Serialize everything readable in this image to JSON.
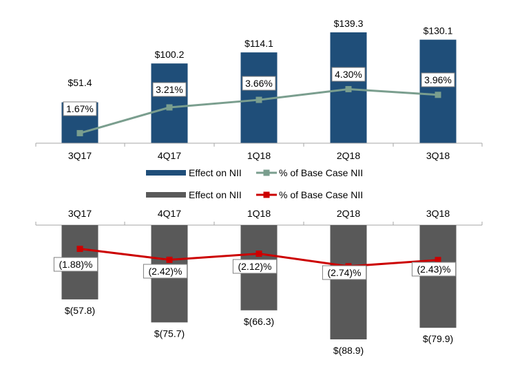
{
  "chart_data": [
    {
      "type": "bar",
      "categories": [
        "3Q17",
        "4Q17",
        "1Q18",
        "2Q18",
        "3Q18"
      ],
      "series": [
        {
          "name": "Effect on NII",
          "values": [
            51.4,
            100.2,
            114.1,
            139.3,
            130.1
          ],
          "labels": [
            "$51.4",
            "$100.2",
            "$114.1",
            "$139.3",
            "$130.1"
          ],
          "color": "#1f4e79",
          "kind": "bar"
        },
        {
          "name": "% of Base Case NII",
          "values": [
            1.67,
            3.21,
            3.66,
            4.3,
            3.96
          ],
          "labels": [
            "1.67%",
            "3.21%",
            "3.66%",
            "4.30%",
            "3.96%"
          ],
          "color": "#7a9e8e",
          "kind": "line"
        }
      ],
      "legend_position": "bottom"
    },
    {
      "type": "bar",
      "categories": [
        "3Q17",
        "4Q17",
        "1Q18",
        "2Q18",
        "3Q18"
      ],
      "series": [
        {
          "name": "Effect on NII",
          "values": [
            -57.8,
            -75.7,
            -66.3,
            -88.9,
            -79.9
          ],
          "labels": [
            "$(57.8)",
            "$(75.7)",
            "$(66.3)",
            "$(88.9)",
            "$(79.9)"
          ],
          "color": "#595959",
          "kind": "bar"
        },
        {
          "name": "% of Base Case NII",
          "values": [
            -1.88,
            -2.42,
            -2.12,
            -2.74,
            -2.43
          ],
          "labels": [
            "(1.88)%",
            "(2.42)%",
            "(2.12)%",
            "(2.74)%",
            "(2.43)%"
          ],
          "color": "#cc0000",
          "kind": "line"
        }
      ],
      "legend_position": "top"
    }
  ]
}
